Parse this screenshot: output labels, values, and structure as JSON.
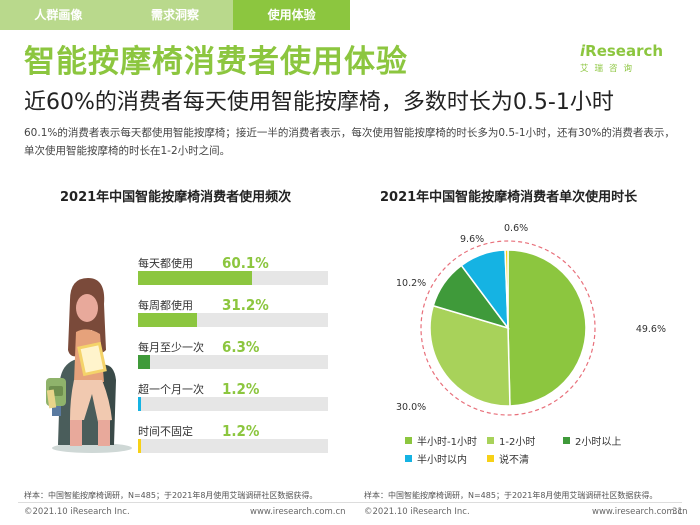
{
  "tabs": [
    {
      "label": "人群画像"
    },
    {
      "label": "需求洞察"
    },
    {
      "label": "使用体验"
    }
  ],
  "header": {
    "title": "智能按摩椅消费者使用体验",
    "subtitle": "近60%的消费者每天使用智能按摩椅，多数时长为0.5-1小时",
    "description": "60.1%的消费者表示每天都使用智能按摩椅；接近一半的消费者表示，每次使用智能按摩椅的时长多为0.5-1小时，还有30%的消费者表示，单次使用智能按摩椅的时长在1-2小时之间。"
  },
  "logo": {
    "main_i": "i",
    "main_rest": "Research",
    "sub": "艾瑞咨询"
  },
  "colors": {
    "accent": "#8cc63f",
    "dark_green": "#3f9a3a",
    "cyan": "#15b3e3",
    "yellow": "#f7d117",
    "track": "#e6e6e6"
  },
  "chart_data": [
    {
      "type": "bar",
      "title": "2021年中国智能按摩椅消费者使用频次",
      "categories": [
        "每天都使用",
        "每周都使用",
        "每月至少一次",
        "超一个月一次",
        "时间不固定"
      ],
      "values": [
        60.1,
        31.2,
        6.3,
        1.2,
        1.2
      ],
      "value_labels": [
        "60.1%",
        "31.2%",
        "6.3%",
        "1.2%",
        "1.2%"
      ],
      "colors": [
        "#8cc63f",
        "#8cc63f",
        "#3f9a3a",
        "#15b3e3",
        "#f7d117"
      ],
      "unit": "%",
      "xlim": [
        0,
        100
      ]
    },
    {
      "type": "pie",
      "title": "2021年中国智能按摩椅消费者单次使用时长",
      "categories": [
        "半小时-1小时",
        "1-2小时",
        "2小时以上",
        "半小时以内",
        "说不清"
      ],
      "values": [
        49.6,
        30.0,
        10.2,
        9.6,
        0.6
      ],
      "value_labels": [
        "49.6%",
        "30.0%",
        "10.2%",
        "9.6%",
        "0.6%"
      ],
      "colors": [
        "#8cc63f",
        "#a8d25a",
        "#3f9a3a",
        "#15b3e3",
        "#f7d117"
      ],
      "legend_position": "bottom"
    }
  ],
  "notes": {
    "left": "样本：中国智能按摩椅调研，N=485；于2021年8月使用艾瑞调研社区数据获得。",
    "right": "样本：中国智能按摩椅调研，N=485；于2021年8月使用艾瑞调研社区数据获得。"
  },
  "footer": {
    "copyright_left": "©2021.10 iResearch Inc.",
    "site_left": "www.iresearch.com.cn",
    "copyright_right": "©2021.10 iResearch Inc.",
    "site_right": "www.iresearch.com.cn",
    "page": "31"
  }
}
